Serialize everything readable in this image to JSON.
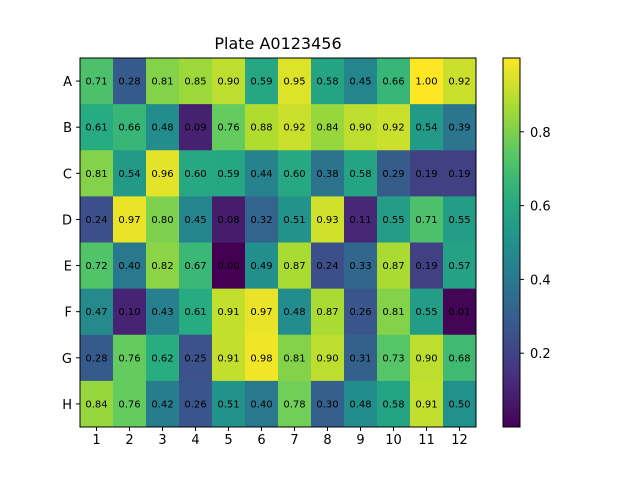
{
  "chart_data": {
    "type": "heatmap",
    "title": "Plate A0123456",
    "xlabel": "",
    "ylabel": "",
    "x_categories": [
      "1",
      "2",
      "3",
      "4",
      "5",
      "6",
      "7",
      "8",
      "9",
      "10",
      "11",
      "12"
    ],
    "y_categories": [
      "A",
      "B",
      "C",
      "D",
      "E",
      "F",
      "G",
      "H"
    ],
    "values": [
      [
        0.71,
        0.28,
        0.81,
        0.85,
        0.9,
        0.59,
        0.95,
        0.58,
        0.45,
        0.66,
        1.0,
        0.92
      ],
      [
        0.61,
        0.66,
        0.48,
        0.09,
        0.76,
        0.88,
        0.92,
        0.84,
        0.9,
        0.92,
        0.54,
        0.39
      ],
      [
        0.81,
        0.54,
        0.96,
        0.6,
        0.59,
        0.44,
        0.6,
        0.38,
        0.58,
        0.29,
        0.19,
        0.19
      ],
      [
        0.24,
        0.97,
        0.8,
        0.45,
        0.08,
        0.32,
        0.51,
        0.93,
        0.11,
        0.55,
        0.71,
        0.55
      ],
      [
        0.72,
        0.4,
        0.82,
        0.67,
        0.0,
        0.49,
        0.87,
        0.24,
        0.33,
        0.87,
        0.19,
        0.57
      ],
      [
        0.47,
        0.1,
        0.43,
        0.61,
        0.91,
        0.97,
        0.48,
        0.87,
        0.26,
        0.81,
        0.55,
        0.01
      ],
      [
        0.28,
        0.76,
        0.62,
        0.25,
        0.91,
        0.98,
        0.81,
        0.9,
        0.31,
        0.73,
        0.9,
        0.68
      ],
      [
        0.84,
        0.76,
        0.42,
        0.26,
        0.51,
        0.4,
        0.78,
        0.3,
        0.48,
        0.58,
        0.91,
        0.5
      ]
    ],
    "value_format": "0.00",
    "colormap": "viridis",
    "color_range": [
      0.0,
      1.0
    ],
    "colorbar": {
      "position": "right",
      "ticks": [
        0.2,
        0.4,
        0.6,
        0.8
      ],
      "tick_labels": [
        "0.2",
        "0.4",
        "0.6",
        "0.8"
      ]
    },
    "grid": false
  }
}
